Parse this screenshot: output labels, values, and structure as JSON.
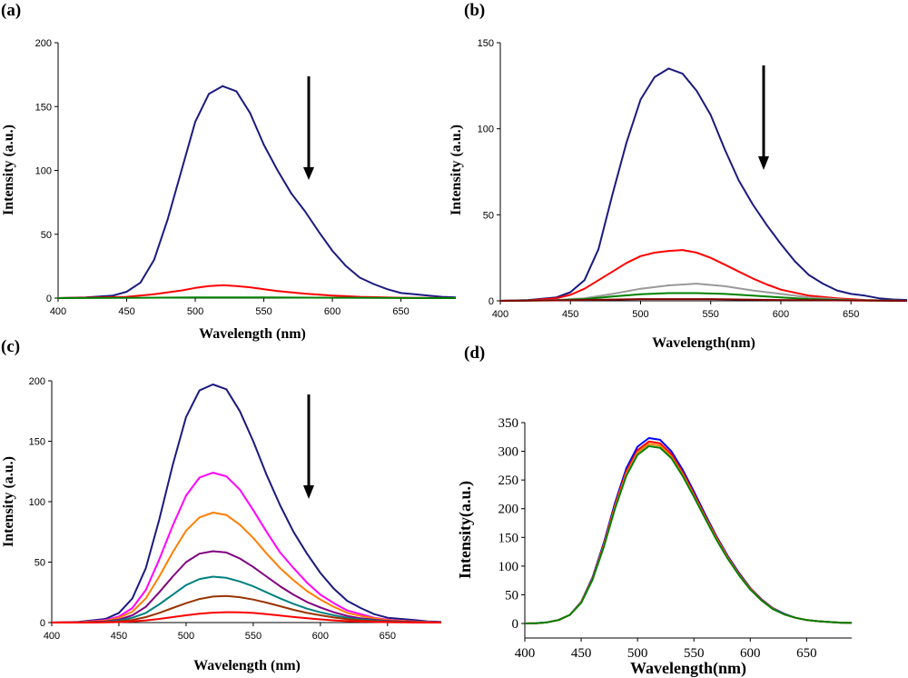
{
  "chart_data": [
    {
      "panel": "(a)",
      "type": "line",
      "xlabel": "Wavelength (nm)",
      "ylabel": "Intensity (a.u.)",
      "xlim": [
        400,
        690
      ],
      "ylim": [
        0,
        200
      ],
      "xticks": [
        400,
        450,
        500,
        550,
        600,
        650
      ],
      "yticks": [
        0,
        50,
        100,
        150,
        200
      ],
      "arrow": "down",
      "series": [
        {
          "name": "navy",
          "color": "#1a1a80",
          "x": [
            400,
            420,
            440,
            450,
            460,
            470,
            480,
            490,
            500,
            510,
            520,
            530,
            540,
            550,
            560,
            570,
            580,
            590,
            600,
            610,
            620,
            630,
            640,
            650,
            660,
            670,
            680,
            690
          ],
          "values": [
            0,
            0.5,
            2,
            5,
            12,
            30,
            62,
            100,
            138,
            160,
            166,
            162,
            145,
            120,
            100,
            82,
            68,
            52,
            37,
            25,
            16,
            11,
            7,
            4,
            3,
            2,
            1,
            0.5
          ]
        },
        {
          "name": "red",
          "color": "#ff0000",
          "x": [
            400,
            430,
            450,
            470,
            490,
            500,
            510,
            520,
            530,
            540,
            550,
            560,
            580,
            600,
            620,
            650,
            690
          ],
          "values": [
            0,
            0.5,
            1,
            3,
            6,
            8,
            9.5,
            10,
            9.5,
            8.5,
            7,
            5.5,
            3.5,
            2,
            1,
            0.3,
            0
          ]
        },
        {
          "name": "green",
          "color": "#008000",
          "x": [
            400,
            450,
            500,
            550,
            600,
            650,
            690
          ],
          "values": [
            0,
            0.2,
            0.6,
            0.6,
            0.3,
            0.1,
            0
          ]
        }
      ]
    },
    {
      "panel": "(b)",
      "type": "line",
      "xlabel": "Wavelength(nm)",
      "ylabel": "Intensity (a.u.)",
      "xlim": [
        400,
        690
      ],
      "ylim": [
        0,
        150
      ],
      "xticks": [
        400,
        450,
        500,
        550,
        600,
        650
      ],
      "yticks": [
        0,
        50,
        100,
        150
      ],
      "arrow": "down",
      "series": [
        {
          "name": "navy",
          "color": "#1a1a80",
          "x": [
            400,
            420,
            440,
            450,
            460,
            470,
            480,
            490,
            500,
            510,
            520,
            530,
            540,
            550,
            560,
            570,
            580,
            590,
            600,
            610,
            620,
            630,
            640,
            650,
            660,
            670,
            680,
            690
          ],
          "values": [
            0,
            0.5,
            2,
            5,
            12,
            30,
            62,
            92,
            117,
            130,
            135,
            132,
            122,
            108,
            88,
            70,
            56,
            44,
            33,
            23,
            15,
            10,
            6,
            4,
            3,
            1.5,
            0.8,
            0.5
          ]
        },
        {
          "name": "red",
          "color": "#ff0000",
          "x": [
            400,
            420,
            440,
            450,
            460,
            470,
            480,
            490,
            500,
            510,
            520,
            530,
            540,
            550,
            560,
            570,
            580,
            590,
            600,
            620,
            640,
            660,
            690
          ],
          "values": [
            0,
            0.3,
            1.5,
            3.5,
            7,
            12,
            17,
            22,
            26,
            28,
            29,
            29.5,
            28,
            25,
            21,
            17,
            13,
            9.5,
            6.5,
            3,
            1.5,
            0.5,
            0
          ]
        },
        {
          "name": "gray",
          "color": "#999999",
          "x": [
            400,
            440,
            460,
            480,
            500,
            520,
            540,
            560,
            580,
            600,
            620,
            650,
            690
          ],
          "values": [
            0,
            0.5,
            1.5,
            4,
            7,
            9,
            10,
            8.5,
            6,
            4,
            2,
            0.5,
            0
          ]
        },
        {
          "name": "green",
          "color": "#008000",
          "x": [
            400,
            440,
            460,
            480,
            500,
            520,
            540,
            560,
            580,
            600,
            620,
            650,
            690
          ],
          "values": [
            0,
            0.3,
            1,
            2.5,
            3.8,
            4.5,
            4.5,
            4,
            3,
            2,
            1,
            0.3,
            0
          ]
        },
        {
          "name": "maroon",
          "color": "#800000",
          "x": [
            400,
            450,
            500,
            550,
            600,
            650,
            690
          ],
          "values": [
            0,
            0.3,
            1,
            1,
            0.5,
            0.2,
            0
          ]
        }
      ]
    },
    {
      "panel": "(c)",
      "type": "line",
      "xlabel": "Wavelength (nm)",
      "ylabel": "Intensity (a.u.)",
      "xlim": [
        400,
        690
      ],
      "ylim": [
        0,
        200
      ],
      "xticks": [
        400,
        450,
        500,
        550,
        600,
        650
      ],
      "yticks": [
        0,
        50,
        100,
        150,
        200
      ],
      "arrow": "down",
      "series": [
        {
          "name": "navy",
          "color": "#1a1a80",
          "x": [
            400,
            420,
            440,
            450,
            460,
            470,
            480,
            490,
            500,
            510,
            520,
            530,
            540,
            550,
            560,
            570,
            580,
            590,
            600,
            610,
            620,
            630,
            640,
            650,
            660,
            670,
            680,
            690
          ],
          "values": [
            0,
            0.5,
            3,
            8,
            20,
            45,
            85,
            130,
            170,
            192,
            197,
            193,
            175,
            150,
            122,
            97,
            75,
            57,
            41,
            28,
            18,
            12,
            7,
            4,
            3,
            2,
            1,
            0.5
          ]
        },
        {
          "name": "magenta",
          "color": "#ff00ff",
          "x": [
            400,
            420,
            440,
            450,
            460,
            470,
            480,
            490,
            500,
            510,
            520,
            530,
            540,
            550,
            560,
            570,
            580,
            590,
            600,
            610,
            620,
            630,
            640,
            650,
            660,
            670,
            690
          ],
          "values": [
            0,
            0.3,
            2,
            5,
            12,
            27,
            52,
            80,
            105,
            120,
            124,
            121,
            110,
            93,
            75,
            58,
            45,
            33,
            23,
            16,
            10,
            7,
            4,
            2.5,
            1.5,
            1,
            0.3
          ]
        },
        {
          "name": "orange",
          "color": "#ff7f00",
          "x": [
            400,
            420,
            440,
            450,
            460,
            470,
            480,
            490,
            500,
            510,
            520,
            530,
            540,
            550,
            560,
            570,
            580,
            590,
            600,
            610,
            620,
            630,
            640,
            650,
            660,
            670,
            690
          ],
          "values": [
            0,
            0.3,
            1.5,
            4,
            9,
            20,
            38,
            58,
            76,
            87,
            91,
            89,
            81,
            70,
            57,
            45,
            35,
            26,
            19,
            13,
            8,
            5.5,
            3.5,
            2,
            1.3,
            0.8,
            0.3
          ]
        },
        {
          "name": "purple",
          "color": "#800080",
          "x": [
            400,
            420,
            440,
            450,
            460,
            470,
            480,
            490,
            500,
            510,
            520,
            530,
            540,
            550,
            560,
            570,
            580,
            590,
            600,
            610,
            620,
            630,
            640,
            650,
            660,
            670,
            690
          ],
          "values": [
            0,
            0.2,
            1,
            2.5,
            6,
            13,
            25,
            38,
            50,
            57,
            59,
            58,
            53,
            46,
            38,
            30,
            23,
            17,
            12.5,
            8.5,
            5.5,
            3.5,
            2.3,
            1.4,
            0.8,
            0.5,
            0.2
          ]
        },
        {
          "name": "teal",
          "color": "#008080",
          "x": [
            400,
            420,
            440,
            450,
            460,
            470,
            480,
            490,
            500,
            510,
            520,
            530,
            540,
            550,
            560,
            570,
            580,
            590,
            600,
            610,
            620,
            630,
            640,
            650,
            660,
            670,
            690
          ],
          "values": [
            0,
            0.1,
            0.7,
            1.7,
            4,
            8,
            15,
            23,
            31,
            36,
            38,
            37,
            34,
            30,
            25,
            20,
            15.5,
            11.5,
            8.5,
            6,
            4,
            2.6,
            1.7,
            1,
            0.6,
            0.3,
            0.1
          ]
        },
        {
          "name": "brown",
          "color": "#993300",
          "x": [
            400,
            420,
            440,
            450,
            460,
            470,
            480,
            490,
            500,
            510,
            520,
            530,
            540,
            550,
            560,
            570,
            580,
            590,
            600,
            610,
            620,
            630,
            640,
            650,
            660,
            670,
            690
          ],
          "values": [
            0,
            0.1,
            0.4,
            1,
            2.2,
            4.5,
            8,
            12,
            16,
            19.5,
            21.5,
            22,
            21,
            19,
            16.5,
            13.5,
            10.5,
            8,
            6,
            4.2,
            2.8,
            1.8,
            1.1,
            0.7,
            0.4,
            0.2,
            0
          ]
        },
        {
          "name": "red",
          "color": "#ff0000",
          "x": [
            400,
            420,
            440,
            450,
            460,
            470,
            480,
            490,
            500,
            510,
            520,
            530,
            540,
            550,
            560,
            570,
            580,
            590,
            600,
            610,
            620,
            630,
            640,
            650,
            660,
            670,
            690
          ],
          "values": [
            0,
            0,
            0.2,
            0.4,
            0.9,
            1.8,
            3,
            4.5,
            6,
            7.3,
            8.2,
            8.6,
            8.5,
            8,
            7,
            5.8,
            4.6,
            3.5,
            2.6,
            1.8,
            1.2,
            0.8,
            0.5,
            0.3,
            0.2,
            0.1,
            0
          ]
        }
      ]
    },
    {
      "panel": "(d)",
      "type": "line",
      "xlabel": "Wavelength(nm)",
      "ylabel": "Intensity(a.u.)",
      "xlim": [
        400,
        690
      ],
      "ylim": [
        0,
        350
      ],
      "xticks": [
        400,
        450,
        500,
        550,
        600,
        650
      ],
      "yticks": [
        0,
        50,
        100,
        150,
        200,
        250,
        300,
        350
      ],
      "series": [
        {
          "name": "blue",
          "color": "#0000ff",
          "x": [
            400,
            410,
            420,
            430,
            440,
            450,
            460,
            470,
            480,
            490,
            500,
            510,
            520,
            530,
            540,
            550,
            560,
            570,
            580,
            590,
            600,
            610,
            620,
            630,
            640,
            650,
            660,
            670,
            680,
            690
          ],
          "values": [
            0,
            0.5,
            2,
            6,
            15,
            38,
            80,
            140,
            210,
            270,
            308,
            323,
            320,
            300,
            268,
            230,
            190,
            152,
            118,
            88,
            62,
            42,
            27,
            17,
            10,
            6,
            4,
            2.5,
            1.5,
            1
          ]
        },
        {
          "name": "red",
          "color": "#ff0000",
          "x": [
            400,
            410,
            420,
            430,
            440,
            450,
            460,
            470,
            480,
            490,
            500,
            510,
            520,
            530,
            540,
            550,
            560,
            570,
            580,
            590,
            600,
            610,
            620,
            630,
            640,
            650,
            660,
            670,
            680,
            690
          ],
          "values": [
            0,
            0.5,
            2,
            6,
            15,
            37,
            78,
            137,
            206,
            265,
            302,
            317,
            314,
            295,
            263,
            226,
            187,
            150,
            116,
            86,
            61,
            41,
            26,
            16,
            10,
            6,
            4,
            2.5,
            1.5,
            1
          ]
        },
        {
          "name": "orange",
          "color": "#ff8000",
          "x": [
            400,
            410,
            420,
            430,
            440,
            450,
            460,
            470,
            480,
            490,
            500,
            510,
            520,
            530,
            540,
            550,
            560,
            570,
            580,
            590,
            600,
            610,
            620,
            630,
            640,
            650,
            660,
            670,
            680,
            690
          ],
          "values": [
            0,
            0.5,
            2,
            6,
            15,
            37,
            77,
            135,
            203,
            261,
            298,
            313,
            310,
            291,
            260,
            223,
            185,
            148,
            115,
            85,
            60,
            40,
            26,
            16,
            10,
            6,
            4,
            2.5,
            1.5,
            1
          ]
        },
        {
          "name": "green",
          "color": "#008000",
          "x": [
            400,
            410,
            420,
            430,
            440,
            450,
            460,
            470,
            480,
            490,
            500,
            510,
            520,
            530,
            540,
            550,
            560,
            570,
            580,
            590,
            600,
            610,
            620,
            630,
            640,
            650,
            660,
            670,
            680,
            690
          ],
          "values": [
            0,
            0.5,
            2,
            6,
            15,
            36,
            76,
            133,
            200,
            257,
            294,
            309,
            306,
            288,
            257,
            221,
            183,
            146,
            113,
            84,
            59,
            40,
            25,
            16,
            10,
            6,
            4,
            2.5,
            1.5,
            1
          ]
        }
      ]
    }
  ]
}
